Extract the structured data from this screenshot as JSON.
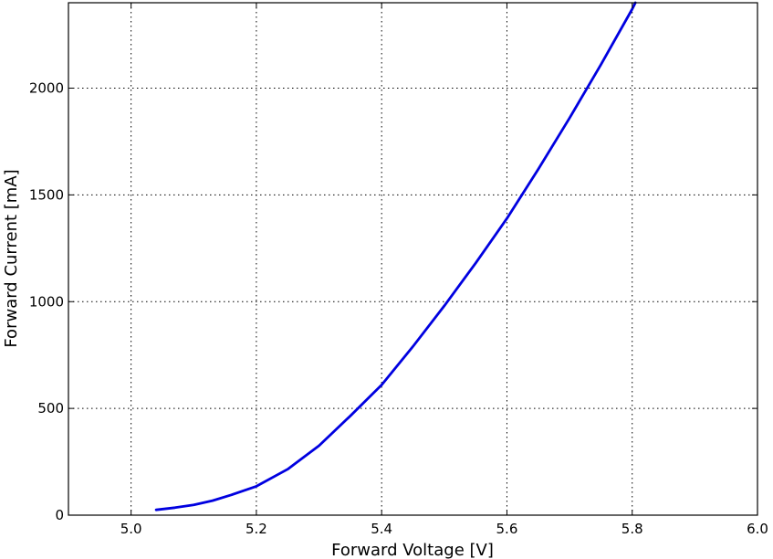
{
  "chart_data": {
    "type": "line",
    "title": "",
    "xlabel": "Forward Voltage [V]",
    "ylabel": "Forward Current [mA]",
    "xlim": [
      4.9,
      6.0
    ],
    "ylim": [
      0,
      2400
    ],
    "xticks": [
      5.0,
      5.2,
      5.4,
      5.6,
      5.8,
      6.0
    ],
    "xtick_labels": [
      "5.0",
      "5.2",
      "5.4",
      "5.6",
      "5.8",
      "6.0"
    ],
    "yticks": [
      0,
      500,
      1000,
      1500,
      2000
    ],
    "ytick_labels": [
      "0",
      "500",
      "1000",
      "1500",
      "2000"
    ],
    "grid": true,
    "legend": "none",
    "series": [
      {
        "color": "#0000e0",
        "x": [
          5.04,
          5.07,
          5.1,
          5.13,
          5.16,
          5.2,
          5.25,
          5.3,
          5.35,
          5.4,
          5.45,
          5.5,
          5.55,
          5.6,
          5.65,
          5.7,
          5.75,
          5.8,
          5.805
        ],
        "y": [
          25,
          35,
          48,
          68,
          95,
          135,
          215,
          325,
          465,
          610,
          790,
          980,
          1180,
          1390,
          1620,
          1860,
          2110,
          2370,
          2400
        ]
      }
    ]
  }
}
